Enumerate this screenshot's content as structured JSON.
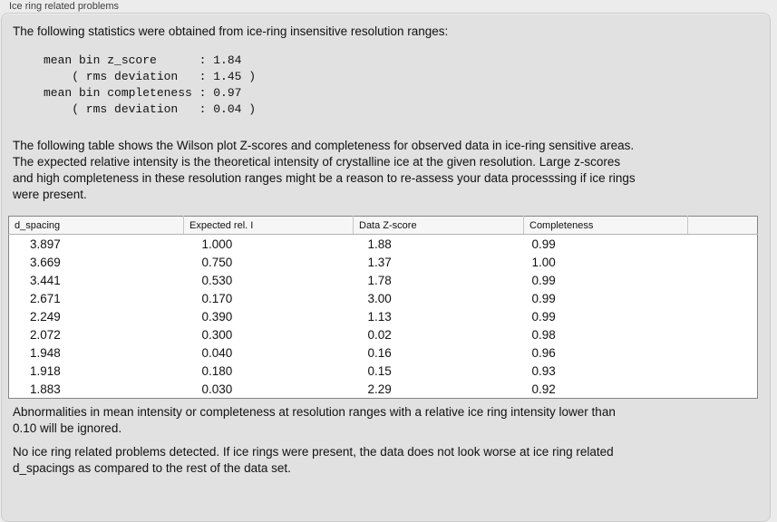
{
  "panel": {
    "title": "Ice ring related problems",
    "intro": "The following statistics were obtained from ice-ring insensitive resolution ranges:",
    "stats_block": "mean bin z_score      : 1.84\n    ( rms deviation   : 1.45 )\nmean bin completeness : 0.97\n    ( rms deviation   : 0.04 )",
    "table_description": "The following table shows the Wilson plot Z-scores and completeness for observed data in ice-ring sensitive areas.\nThe expected relative intensity is the theoretical intensity of crystalline ice at the given resolution. Large z-scores\nand high completeness in these resolution ranges might be a reason to re-assess your data processsing if ice rings\nwere present.",
    "note_ignored": "Abnormalities in mean intensity or completeness at resolution ranges with a relative ice ring intensity lower than\n0.10 will be ignored.",
    "conclusion": "No ice ring related problems detected. If ice rings were present, the data does not look worse at ice ring related\nd_spacings as compared to the rest of the data set."
  },
  "table": {
    "columns": [
      "d_spacing",
      "Expected rel. I",
      "Data Z-score",
      "Completeness",
      ""
    ],
    "rows": [
      [
        "3.897",
        "1.000",
        "1.88",
        "0.99"
      ],
      [
        "3.669",
        "0.750",
        "1.37",
        "1.00"
      ],
      [
        "3.441",
        "0.530",
        "1.78",
        "0.99"
      ],
      [
        "2.671",
        "0.170",
        "3.00",
        "0.99"
      ],
      [
        "2.249",
        "0.390",
        "1.13",
        "0.99"
      ],
      [
        "2.072",
        "0.300",
        "0.02",
        "0.98"
      ],
      [
        "1.948",
        "0.040",
        "0.16",
        "0.96"
      ],
      [
        "1.918",
        "0.180",
        "0.15",
        "0.93"
      ],
      [
        "1.883",
        "0.030",
        "2.29",
        "0.92"
      ]
    ]
  },
  "colors": {
    "page_bg": "#ececec",
    "panel_bg": "#e1e1e1",
    "table_border": "#858585",
    "header_bg": "#f6f6f6",
    "text": "#111111"
  }
}
